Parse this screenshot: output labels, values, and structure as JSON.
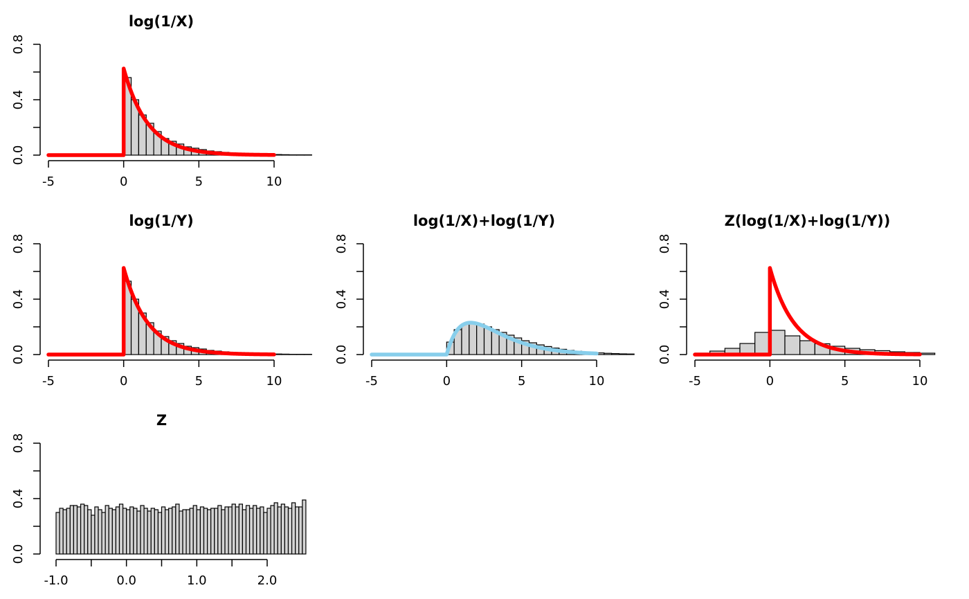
{
  "figure": {
    "background": "#ffffff"
  },
  "colors": {
    "red": "#ff0000",
    "skyblue": "#87ceeb",
    "bar_fill": "#d3d3d3",
    "bar_border": "#000000"
  },
  "chart_data": [
    {
      "title": "log(1/X)",
      "type": "bar",
      "xlim": [
        -5,
        10
      ],
      "ylim": [
        0,
        0.8
      ],
      "xticks": [
        -5,
        0,
        5,
        10
      ],
      "xtick_labels": [
        "-5",
        "0",
        "5",
        "10"
      ],
      "yticks": [
        0,
        0.4,
        0.8
      ],
      "ytick_labels": [
        "0.0",
        "0.4",
        "0.8"
      ],
      "bins": {
        "start": 0,
        "width": 0.5,
        "values": [
          0.56,
          0.4,
          0.29,
          0.23,
          0.17,
          0.12,
          0.1,
          0.08,
          0.06,
          0.05,
          0.04,
          0.03,
          0.025,
          0.02,
          0.015,
          0.012,
          0.01,
          0.008,
          0.006,
          0.005,
          0.004,
          0.003,
          0.002,
          0.002,
          0.002
        ]
      },
      "series": [
        {
          "kind": "density",
          "dist": "exp",
          "rate": 0.625,
          "color": "#ff0000",
          "x_range": [
            -5,
            10
          ]
        }
      ]
    },
    {
      "title": "log(1/Y)",
      "type": "bar",
      "xlim": [
        -5,
        10
      ],
      "ylim": [
        0,
        0.8
      ],
      "xticks": [
        -5,
        0,
        5,
        10
      ],
      "xtick_labels": [
        "-5",
        "0",
        "5",
        "10"
      ],
      "yticks": [
        0,
        0.4,
        0.8
      ],
      "ytick_labels": [
        "0.0",
        "0.4",
        "0.8"
      ],
      "bins": {
        "start": 0,
        "width": 0.5,
        "values": [
          0.53,
          0.4,
          0.3,
          0.23,
          0.17,
          0.13,
          0.1,
          0.08,
          0.06,
          0.05,
          0.04,
          0.03,
          0.025,
          0.02,
          0.015,
          0.012,
          0.01,
          0.008,
          0.006,
          0.005,
          0.004,
          0.003,
          0.002,
          0.002,
          0.002
        ]
      },
      "series": [
        {
          "kind": "density",
          "dist": "exp",
          "rate": 0.625,
          "color": "#ff0000",
          "x_range": [
            -5,
            10
          ]
        }
      ]
    },
    {
      "title": "log(1/X)+log(1/Y)",
      "type": "bar",
      "xlim": [
        -5,
        10
      ],
      "ylim": [
        0,
        0.8
      ],
      "xticks": [
        -5,
        0,
        5,
        10
      ],
      "xtick_labels": [
        "-5",
        "0",
        "5",
        "10"
      ],
      "yticks": [
        0,
        0.4,
        0.8
      ],
      "ytick_labels": [
        "0.0",
        "0.4",
        "0.8"
      ],
      "bins": {
        "start": 0,
        "width": 0.5,
        "values": [
          0.09,
          0.18,
          0.22,
          0.23,
          0.22,
          0.2,
          0.18,
          0.16,
          0.14,
          0.12,
          0.1,
          0.085,
          0.07,
          0.058,
          0.047,
          0.038,
          0.03,
          0.024,
          0.019,
          0.015,
          0.012,
          0.009,
          0.007,
          0.005,
          0.004
        ]
      },
      "series": [
        {
          "kind": "density",
          "dist": "gamma2",
          "rate": 0.625,
          "color": "#87ceeb",
          "x_range": [
            -5,
            10
          ]
        }
      ]
    },
    {
      "title": "Z(log(1/X)+log(1/Y))",
      "type": "bar",
      "xlim": [
        -5,
        10
      ],
      "ylim": [
        0,
        0.8
      ],
      "xticks": [
        -5,
        0,
        5,
        10
      ],
      "xtick_labels": [
        "-5",
        "0",
        "5",
        "10"
      ],
      "yticks": [
        0,
        0.4,
        0.8
      ],
      "ytick_labels": [
        "0.0",
        "0.4",
        "0.8"
      ],
      "bins": {
        "start": -5,
        "width": 1,
        "values": [
          0.01,
          0.025,
          0.045,
          0.08,
          0.16,
          0.175,
          0.135,
          0.1,
          0.078,
          0.06,
          0.045,
          0.035,
          0.028,
          0.02,
          0.015,
          0.01
        ]
      },
      "series": [
        {
          "kind": "density",
          "dist": "exp",
          "rate": 0.625,
          "color": "#ff0000",
          "x_range": [
            -5,
            10
          ]
        }
      ]
    },
    {
      "title": "Z",
      "type": "bar",
      "xlim": [
        -1,
        2
      ],
      "ylim": [
        0,
        0.8
      ],
      "xticks": [
        -1,
        0,
        1,
        2
      ],
      "xtick_labels": [
        "-1.0",
        "0.0",
        "1.0",
        "2.0"
      ],
      "minor_xticks": [
        -0.5,
        0.5,
        1.5
      ],
      "yticks": [
        0,
        0.4,
        0.8
      ],
      "ytick_labels": [
        "0.0",
        "0.4",
        "0.8"
      ],
      "bins": {
        "start": -1,
        "width": 0.05,
        "values": [
          0.3,
          0.33,
          0.32,
          0.33,
          0.35,
          0.35,
          0.34,
          0.36,
          0.35,
          0.32,
          0.28,
          0.34,
          0.32,
          0.3,
          0.35,
          0.33,
          0.32,
          0.34,
          0.36,
          0.33,
          0.32,
          0.34,
          0.33,
          0.31,
          0.35,
          0.33,
          0.31,
          0.33,
          0.32,
          0.3,
          0.34,
          0.32,
          0.33,
          0.34,
          0.36,
          0.31,
          0.32,
          0.32,
          0.33,
          0.35,
          0.32,
          0.34,
          0.33,
          0.32,
          0.33,
          0.33,
          0.35,
          0.32,
          0.34,
          0.34,
          0.36,
          0.34,
          0.36,
          0.32,
          0.35,
          0.33,
          0.35,
          0.33,
          0.34,
          0.3,
          0.33,
          0.35,
          0.37,
          0.34,
          0.36,
          0.34,
          0.33,
          0.37,
          0.34,
          0.34,
          0.39
        ]
      },
      "series": []
    }
  ]
}
